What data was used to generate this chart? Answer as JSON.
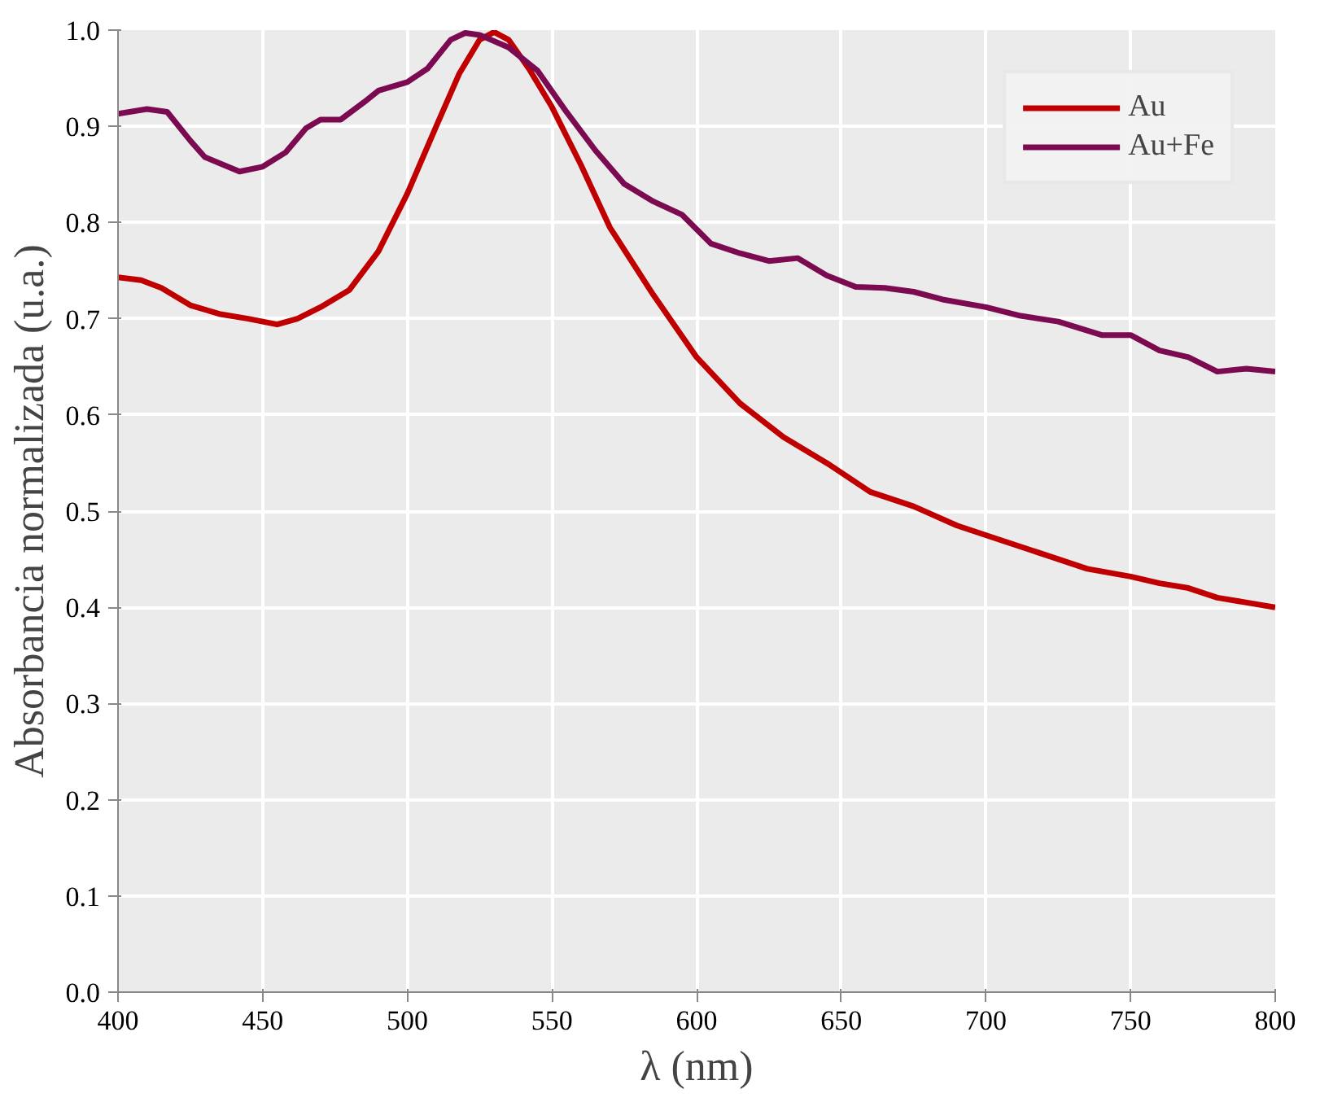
{
  "chart_data": {
    "type": "line",
    "xlabel": "λ (nm)",
    "ylabel": "Absorbancia normalizada (u.a.)",
    "xlim": [
      400,
      800
    ],
    "xticks": [
      400,
      450,
      500,
      550,
      600,
      650,
      700,
      750,
      800
    ],
    "ylim": [
      0,
      1
    ],
    "yticks": [
      {
        "value": 0,
        "label": "0.0"
      },
      0.1,
      0.2,
      0.3,
      0.4,
      0.5,
      0.6,
      0.7,
      0.8,
      0.9,
      {
        "value": 1,
        "label": "1.0"
      }
    ],
    "grid": true,
    "legend": "top right",
    "line_style": "solid",
    "marker": "none",
    "series": [
      {
        "name": "Au",
        "color": "#c00000",
        "x": [
          400,
          408,
          415,
          425,
          435,
          445,
          455,
          462,
          470,
          480,
          490,
          500,
          510,
          518,
          525,
          530,
          535,
          542,
          550,
          560,
          570,
          585,
          600,
          615,
          630,
          645,
          660,
          675,
          690,
          705,
          720,
          735,
          750,
          760,
          770,
          780,
          800
        ],
        "values": [
          0.743,
          0.74,
          0.732,
          0.714,
          0.705,
          0.7,
          0.694,
          0.7,
          0.712,
          0.73,
          0.77,
          0.83,
          0.9,
          0.955,
          0.99,
          0.998,
          0.99,
          0.96,
          0.92,
          0.86,
          0.795,
          0.725,
          0.66,
          0.612,
          0.577,
          0.55,
          0.52,
          0.505,
          0.485,
          0.47,
          0.455,
          0.44,
          0.432,
          0.425,
          0.42,
          0.41,
          0.4
        ]
      },
      {
        "name": "Au+Fe",
        "color": "#7b0a50",
        "x": [
          400,
          410,
          417,
          425,
          430,
          442,
          450,
          458,
          465,
          470,
          477,
          485,
          490,
          500,
          507,
          515,
          520,
          525,
          535,
          545,
          555,
          565,
          575,
          585,
          595,
          605,
          615,
          625,
          635,
          645,
          655,
          665,
          675,
          685,
          700,
          712,
          725,
          740,
          750,
          760,
          770,
          780,
          790,
          800
        ],
        "values": [
          0.913,
          0.918,
          0.915,
          0.885,
          0.868,
          0.853,
          0.858,
          0.873,
          0.898,
          0.907,
          0.907,
          0.925,
          0.937,
          0.946,
          0.96,
          0.99,
          0.997,
          0.995,
          0.982,
          0.958,
          0.915,
          0.875,
          0.84,
          0.822,
          0.808,
          0.778,
          0.768,
          0.76,
          0.763,
          0.745,
          0.733,
          0.732,
          0.728,
          0.72,
          0.712,
          0.703,
          0.697,
          0.683,
          0.683,
          0.667,
          0.66,
          0.645,
          0.648,
          0.645
        ]
      }
    ]
  }
}
